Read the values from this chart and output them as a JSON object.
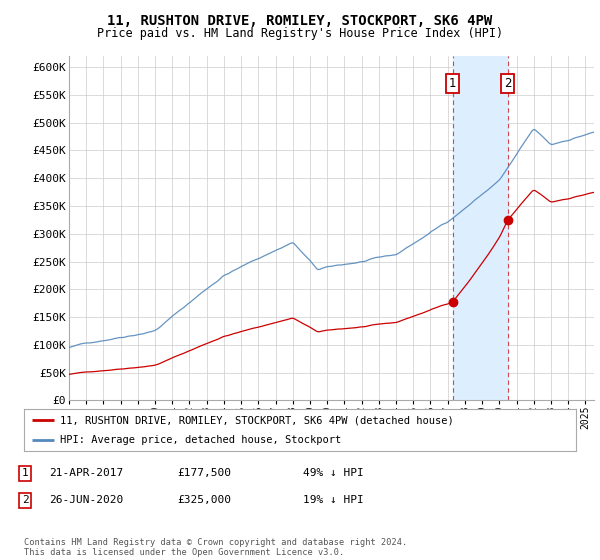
{
  "title": "11, RUSHTON DRIVE, ROMILEY, STOCKPORT, SK6 4PW",
  "subtitle": "Price paid vs. HM Land Registry's House Price Index (HPI)",
  "ylim": [
    0,
    620000
  ],
  "yticks": [
    0,
    50000,
    100000,
    150000,
    200000,
    250000,
    300000,
    350000,
    400000,
    450000,
    500000,
    550000,
    600000
  ],
  "ytick_labels": [
    "£0",
    "£50K",
    "£100K",
    "£150K",
    "£200K",
    "£250K",
    "£300K",
    "£350K",
    "£400K",
    "£450K",
    "£500K",
    "£550K",
    "£600K"
  ],
  "sale1_date": 2017.29,
  "sale1_price": 177500,
  "sale2_date": 2020.49,
  "sale2_price": 325000,
  "red_line_color": "#cc0000",
  "blue_line_color": "#5588bb",
  "vline_color": "#cc0000",
  "shade_color": "#ddeeff",
  "annotation_box_color": "#cc0000",
  "background_color": "#ffffff",
  "grid_color": "#cccccc",
  "legend_label_red": "11, RUSHTON DRIVE, ROMILEY, STOCKPORT, SK6 4PW (detached house)",
  "legend_label_blue": "HPI: Average price, detached house, Stockport",
  "table_row1": [
    "1",
    "21-APR-2017",
    "£177,500",
    "49% ↓ HPI"
  ],
  "table_row2": [
    "2",
    "26-JUN-2020",
    "£325,000",
    "19% ↓ HPI"
  ],
  "footer": "Contains HM Land Registry data © Crown copyright and database right 2024.\nThis data is licensed under the Open Government Licence v3.0."
}
